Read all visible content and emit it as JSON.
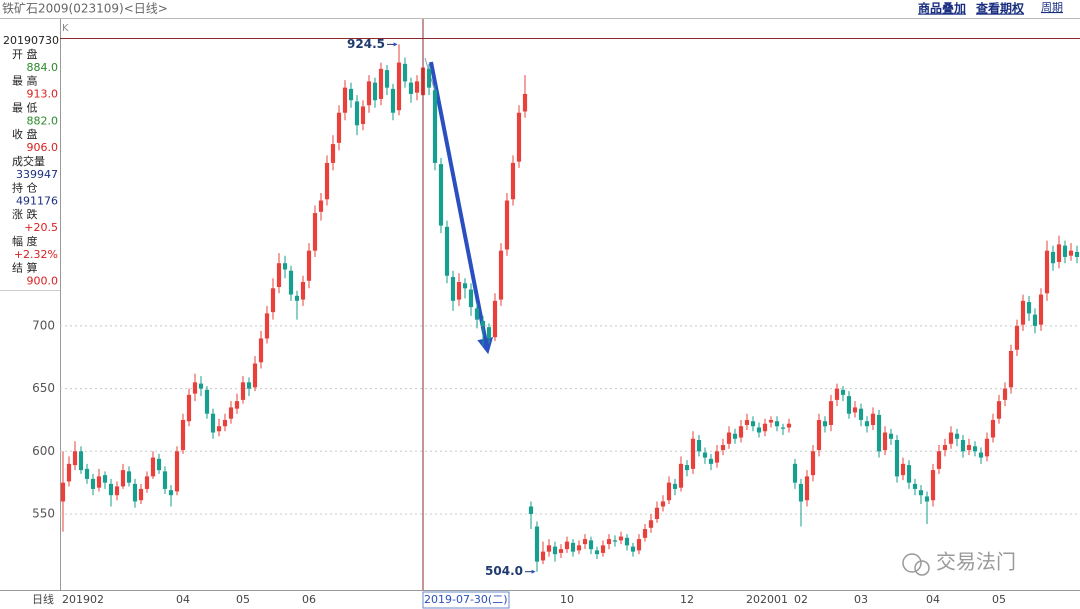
{
  "header": {
    "title": "铁矿石2009(023109)<日线>",
    "links": [
      "商品叠加",
      "查看期权"
    ],
    "period": "周期"
  },
  "panel": {
    "k_label": "K",
    "date": "20190730",
    "period_label": "日线",
    "rows": [
      {
        "label": "开 盘",
        "value": "884.0",
        "color": "#2a8a2a"
      },
      {
        "label": "最 高",
        "value": "913.0",
        "color": "#d82020"
      },
      {
        "label": "最 低",
        "value": "882.0",
        "color": "#2a8a2a"
      },
      {
        "label": "收 盘",
        "value": "906.0",
        "color": "#d82020"
      },
      {
        "label": "成交量",
        "value": "339947",
        "color": "#1a2f80"
      },
      {
        "label": "持 仓",
        "value": "491176",
        "color": "#1a2f80"
      },
      {
        "label": "涨 跌",
        "value": "+20.5",
        "color": "#d82020"
      },
      {
        "label": "幅 度",
        "value": "+2.32%",
        "color": "#d82020"
      },
      {
        "label": "结 算",
        "value": "900.0",
        "color": "#d82020"
      }
    ]
  },
  "watermark": "交易法门",
  "chart_data": {
    "type": "candlestick",
    "up_color": "#e8403a",
    "down_color": "#179e8e",
    "ylim": [
      489.4,
      929.6
    ],
    "yticks": [
      550,
      600,
      650,
      700
    ],
    "grid": true,
    "annotations": [
      {
        "text": "924.5",
        "value": 924.5
      },
      {
        "text": "504.0",
        "value": 504.0
      }
    ],
    "categories": [
      "201902",
      null,
      null,
      null,
      null,
      null,
      null,
      null,
      null,
      null,
      null,
      null,
      null,
      null,
      null,
      null,
      null,
      null,
      null,
      "04",
      null,
      null,
      null,
      null,
      null,
      null,
      null,
      null,
      null,
      "05",
      null,
      null,
      null,
      null,
      null,
      null,
      null,
      null,
      null,
      null,
      "06",
      null,
      null,
      null,
      null,
      null,
      null,
      null,
      null,
      null,
      null,
      null,
      null,
      null,
      null,
      null,
      null,
      null,
      null,
      null,
      "2019-07-30(二)",
      null,
      null,
      null,
      null,
      null,
      null,
      null,
      null,
      null,
      null,
      null,
      null,
      null,
      null,
      null,
      null,
      null,
      null,
      null,
      null,
      null,
      null,
      "10",
      null,
      null,
      null,
      null,
      null,
      null,
      null,
      null,
      null,
      null,
      null,
      null,
      null,
      null,
      null,
      null,
      null,
      null,
      null,
      "12",
      null,
      null,
      null,
      null,
      null,
      null,
      null,
      null,
      null,
      null,
      "202001",
      null,
      null,
      null,
      null,
      null,
      null,
      null,
      "02",
      null,
      null,
      null,
      null,
      null,
      null,
      null,
      null,
      null,
      "03",
      null,
      null,
      null,
      null,
      null,
      null,
      null,
      null,
      null,
      null,
      null,
      "04",
      null,
      null,
      null,
      null,
      null,
      null,
      null,
      null,
      null,
      null,
      "05",
      null,
      null,
      null,
      null,
      null,
      null,
      null,
      null,
      null,
      null,
      null,
      null,
      null,
      null
    ],
    "candles": [
      [
        560,
        600,
        536,
        575
      ],
      [
        576,
        596,
        572,
        590
      ],
      [
        589,
        608,
        585,
        600
      ],
      [
        600,
        604,
        582,
        585
      ],
      [
        586,
        590,
        574,
        578
      ],
      [
        578,
        582,
        565,
        570
      ],
      [
        571,
        586,
        568,
        580
      ],
      [
        581,
        584,
        570,
        575
      ],
      [
        574,
        578,
        556,
        565
      ],
      [
        565,
        576,
        561,
        572
      ],
      [
        572,
        590,
        570,
        585
      ],
      [
        584,
        588,
        572,
        575
      ],
      [
        574,
        578,
        555,
        560
      ],
      [
        561,
        574,
        558,
        570
      ],
      [
        570,
        584,
        567,
        580
      ],
      [
        580,
        600,
        578,
        595
      ],
      [
        594,
        598,
        582,
        585
      ],
      [
        584,
        588,
        566,
        570
      ],
      [
        569,
        573,
        556,
        565
      ],
      [
        568,
        604,
        565,
        600
      ],
      [
        601,
        630,
        598,
        625
      ],
      [
        624,
        650,
        620,
        645
      ],
      [
        646,
        662,
        640,
        655
      ],
      [
        654,
        660,
        644,
        650
      ],
      [
        649,
        652,
        626,
        630
      ],
      [
        630,
        634,
        610,
        615
      ],
      [
        616,
        626,
        612,
        620
      ],
      [
        620,
        630,
        616,
        625
      ],
      [
        626,
        640,
        622,
        635
      ],
      [
        634,
        646,
        630,
        640
      ],
      [
        641,
        660,
        638,
        655
      ],
      [
        655,
        659,
        644,
        650
      ],
      [
        651,
        676,
        648,
        670
      ],
      [
        671,
        696,
        666,
        690
      ],
      [
        690,
        716,
        686,
        710
      ],
      [
        711,
        738,
        705,
        730
      ],
      [
        731,
        758,
        726,
        750
      ],
      [
        750,
        756,
        738,
        745
      ],
      [
        744,
        748,
        720,
        725
      ],
      [
        724,
        728,
        705,
        720
      ],
      [
        721,
        740,
        716,
        735
      ],
      [
        736,
        766,
        730,
        760
      ],
      [
        760,
        796,
        755,
        790
      ],
      [
        791,
        806,
        784,
        800
      ],
      [
        801,
        836,
        796,
        830
      ],
      [
        830,
        852,
        824,
        845
      ],
      [
        846,
        876,
        840,
        870
      ],
      [
        870,
        896,
        864,
        890
      ],
      [
        889,
        894,
        874,
        880
      ],
      [
        879,
        884,
        852,
        860
      ],
      [
        861,
        880,
        856,
        875
      ],
      [
        876,
        900,
        870,
        895
      ],
      [
        894,
        898,
        874,
        880
      ],
      [
        881,
        910,
        876,
        905
      ],
      [
        904,
        908,
        884,
        890
      ],
      [
        889,
        893,
        864,
        870
      ],
      [
        872,
        924.5,
        868,
        910
      ],
      [
        909,
        914,
        890,
        895
      ],
      [
        894,
        898,
        878,
        885
      ],
      [
        886,
        900,
        880,
        895
      ],
      [
        884,
        913,
        882,
        906
      ],
      [
        905,
        909,
        884,
        890
      ],
      [
        888,
        892,
        824,
        830
      ],
      [
        829,
        834,
        774,
        780
      ],
      [
        779,
        784,
        734,
        740
      ],
      [
        739,
        744,
        712,
        720
      ],
      [
        721,
        742,
        716,
        735
      ],
      [
        734,
        738,
        722,
        730
      ],
      [
        729,
        734,
        708,
        715
      ],
      [
        714,
        718,
        698,
        705
      ],
      [
        704,
        708,
        684,
        700
      ],
      [
        699,
        702,
        686,
        690
      ],
      [
        691,
        726,
        688,
        720
      ],
      [
        721,
        766,
        716,
        760
      ],
      [
        761,
        806,
        756,
        800
      ],
      [
        801,
        836,
        796,
        830
      ],
      [
        831,
        876,
        826,
        870
      ],
      [
        871,
        900,
        866,
        885
      ],
      [
        556,
        560,
        538,
        550
      ],
      [
        540,
        544,
        504.0,
        512
      ],
      [
        513,
        528,
        510,
        520
      ],
      [
        520,
        530,
        516,
        525
      ],
      [
        524,
        528,
        512,
        518
      ],
      [
        519,
        526,
        515,
        522
      ],
      [
        522,
        532,
        519,
        528
      ],
      [
        527,
        530,
        516,
        520
      ],
      [
        521,
        529,
        518,
        525
      ],
      [
        526,
        534,
        522,
        530
      ],
      [
        529,
        532,
        518,
        522
      ],
      [
        521,
        524,
        514,
        518
      ],
      [
        519,
        529,
        516,
        525
      ],
      [
        526,
        534,
        522,
        530
      ],
      [
        529,
        533,
        524,
        528
      ],
      [
        529,
        536,
        526,
        532
      ],
      [
        531,
        534,
        521,
        525
      ],
      [
        524,
        527,
        516,
        520
      ],
      [
        521,
        534,
        518,
        530
      ],
      [
        531,
        542,
        528,
        538
      ],
      [
        539,
        550,
        535,
        545
      ],
      [
        546,
        560,
        543,
        555
      ],
      [
        556,
        565,
        552,
        560
      ],
      [
        561,
        580,
        558,
        575
      ],
      [
        574,
        578,
        565,
        570
      ],
      [
        571,
        596,
        568,
        590
      ],
      [
        589,
        593,
        580,
        585
      ],
      [
        586,
        616,
        582,
        610
      ],
      [
        609,
        613,
        596,
        600
      ],
      [
        599,
        603,
        590,
        595
      ],
      [
        594,
        598,
        585,
        590
      ],
      [
        591,
        605,
        587,
        600
      ],
      [
        601,
        610,
        597,
        605
      ],
      [
        606,
        620,
        602,
        615
      ],
      [
        614,
        618,
        606,
        610
      ],
      [
        611,
        625,
        607,
        620
      ],
      [
        621,
        630,
        617,
        625
      ],
      [
        624,
        628,
        616,
        620
      ],
      [
        619,
        623,
        611,
        615
      ],
      [
        616,
        626,
        612,
        622
      ],
      [
        623,
        628,
        619,
        625
      ],
      [
        624,
        628,
        616,
        620
      ],
      [
        619,
        622,
        613,
        618
      ],
      [
        619,
        626,
        615,
        622
      ],
      [
        590,
        594,
        570,
        575
      ],
      [
        574,
        578,
        540,
        560
      ],
      [
        561,
        585,
        556,
        580
      ],
      [
        581,
        605,
        576,
        600
      ],
      [
        601,
        630,
        596,
        625
      ],
      [
        624,
        628,
        615,
        620
      ],
      [
        621,
        645,
        616,
        640
      ],
      [
        641,
        654,
        636,
        650
      ],
      [
        649,
        652,
        640,
        645
      ],
      [
        644,
        648,
        626,
        630
      ],
      [
        631,
        640,
        627,
        635
      ],
      [
        634,
        638,
        620,
        625
      ],
      [
        624,
        628,
        615,
        620
      ],
      [
        621,
        635,
        617,
        630
      ],
      [
        629,
        633,
        595,
        600
      ],
      [
        601,
        620,
        597,
        615
      ],
      [
        614,
        618,
        605,
        610
      ],
      [
        609,
        613,
        575,
        580
      ],
      [
        581,
        595,
        577,
        590
      ],
      [
        589,
        593,
        570,
        575
      ],
      [
        574,
        578,
        565,
        570
      ],
      [
        569,
        573,
        558,
        565
      ],
      [
        564,
        568,
        542,
        560
      ],
      [
        561,
        590,
        556,
        585
      ],
      [
        586,
        605,
        582,
        600
      ],
      [
        601,
        610,
        596,
        605
      ],
      [
        606,
        620,
        602,
        615
      ],
      [
        614,
        618,
        604,
        610
      ],
      [
        609,
        613,
        595,
        600
      ],
      [
        601,
        610,
        597,
        605
      ],
      [
        604,
        608,
        596,
        600
      ],
      [
        599,
        603,
        590,
        595
      ],
      [
        596,
        615,
        592,
        610
      ],
      [
        611,
        630,
        607,
        625
      ],
      [
        626,
        645,
        622,
        640
      ],
      [
        641,
        655,
        636,
        650
      ],
      [
        651,
        685,
        646,
        680
      ],
      [
        681,
        705,
        676,
        700
      ],
      [
        701,
        725,
        696,
        720
      ],
      [
        719,
        724,
        704,
        710
      ],
      [
        709,
        714,
        694,
        700
      ],
      [
        701,
        730,
        696,
        725
      ],
      [
        726,
        768,
        720,
        760
      ],
      [
        759,
        764,
        744,
        750
      ],
      [
        751,
        772,
        746,
        765
      ],
      [
        764,
        768,
        750,
        755
      ],
      [
        756,
        766,
        752,
        760
      ],
      [
        759,
        764,
        750,
        755
      ]
    ]
  }
}
